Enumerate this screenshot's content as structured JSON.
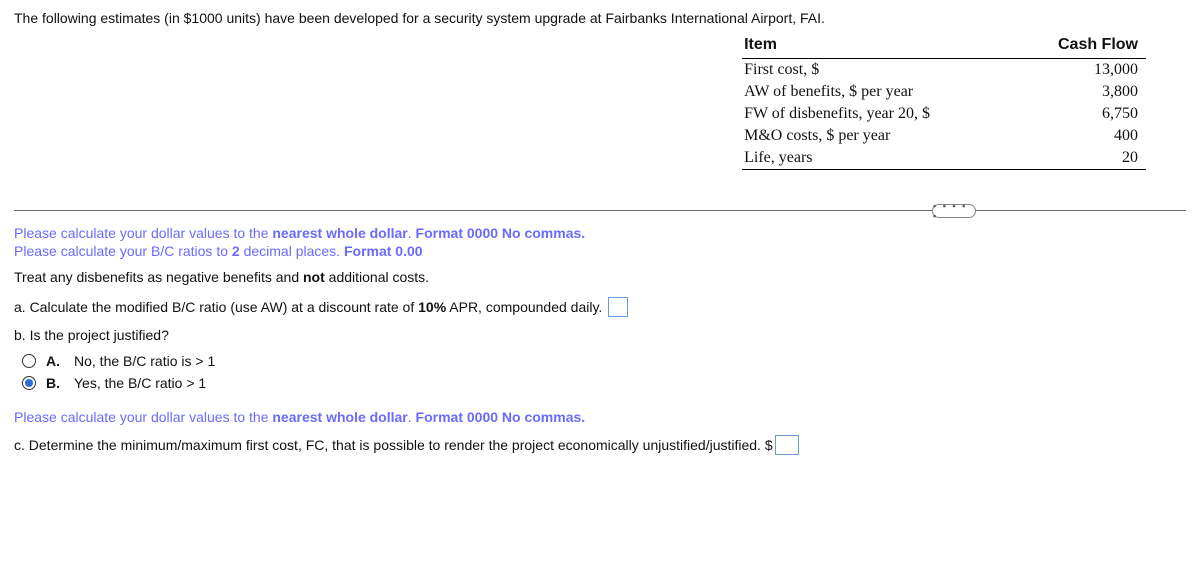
{
  "intro": "The following estimates (in $1000 units) have been developed for a security system upgrade at Fairbanks International Airport, FAI.",
  "table": {
    "headers": {
      "item": "Item",
      "cash": "Cash Flow"
    },
    "rows": [
      {
        "item": "First cost, $",
        "val": "13,000"
      },
      {
        "item": "AW of benefits, $ per year",
        "val": "3,800"
      },
      {
        "item": "FW of disbenefits, year 20, $",
        "val": "6,750"
      },
      {
        "item": "M&O costs, $ per year",
        "val": "400"
      },
      {
        "item": "Life, years",
        "val": "20"
      }
    ]
  },
  "divider_handle_glyph": "▪ ▪ ▪ ▪ ▪",
  "instr1_a": "Please calculate your dollar values to the ",
  "instr1_b": "nearest whole dollar",
  "instr1_c": ".  ",
  "instr1_d": "Format 0000  No commas.",
  "instr2_a": "Please calculate your B/C ratios to ",
  "instr2_b": "2",
  "instr2_c": " decimal places.  ",
  "instr2_d": "Format 0.00",
  "note_a": "Treat any disbenefits as negative benefits and ",
  "note_b": "not",
  "note_c": " additional costs.",
  "qa_a": "a. Calculate the modified B/C ratio (use AW) at a discount rate of ",
  "qa_b": "10%",
  "qa_c": " APR, compounded daily.",
  "qb": "b. Is the project justified?",
  "optA_letter": "A.",
  "optA_text": "No, the B/C ratio is > 1",
  "optB_letter": "B.",
  "optB_text": "Yes, the B/C ratio > 1",
  "instr3_a": "Please calculate your dollar values to the ",
  "instr3_b": "nearest whole dollar",
  "instr3_c": ".  ",
  "instr3_d": "Format 0000  No commas.",
  "qc": "c. Determine the minimum/maximum first cost, FC,  that is possible to render the project economically unjustified/justified.  $"
}
